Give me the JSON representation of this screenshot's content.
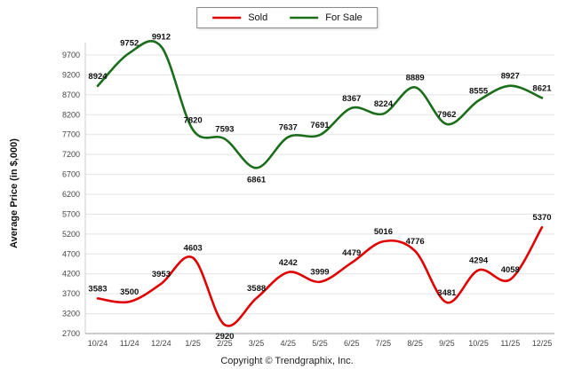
{
  "footer": "Copyright © Trendgraphix, Inc.",
  "chart_data": {
    "type": "line",
    "title": "",
    "xlabel": "",
    "ylabel": "Average Price (in $,000)",
    "categories": [
      "10/24",
      "11/24",
      "12/24",
      "1/25",
      "2/25",
      "3/25",
      "4/25",
      "5/25",
      "6/25",
      "7/25",
      "8/25",
      "9/25",
      "10/25",
      "11/25",
      "12/25"
    ],
    "series": [
      {
        "name": "Sold",
        "color": "#e00000",
        "values": [
          3583,
          3500,
          3953,
          4603,
          2920,
          3588,
          4242,
          3999,
          4479,
          5016,
          4776,
          3481,
          4294,
          4058,
          5370
        ],
        "labels_below": [
          4
        ]
      },
      {
        "name": "For Sale",
        "color": "#1a6e1a",
        "values": [
          8924,
          9752,
          9912,
          7820,
          7593,
          6861,
          7637,
          7691,
          8367,
          8224,
          8889,
          7962,
          8555,
          8927,
          8621
        ],
        "labels_below": [
          5
        ]
      }
    ],
    "ylim": [
      2700,
      9700
    ],
    "ytick_step": 500,
    "grid": true,
    "legend_position": "top-center"
  }
}
